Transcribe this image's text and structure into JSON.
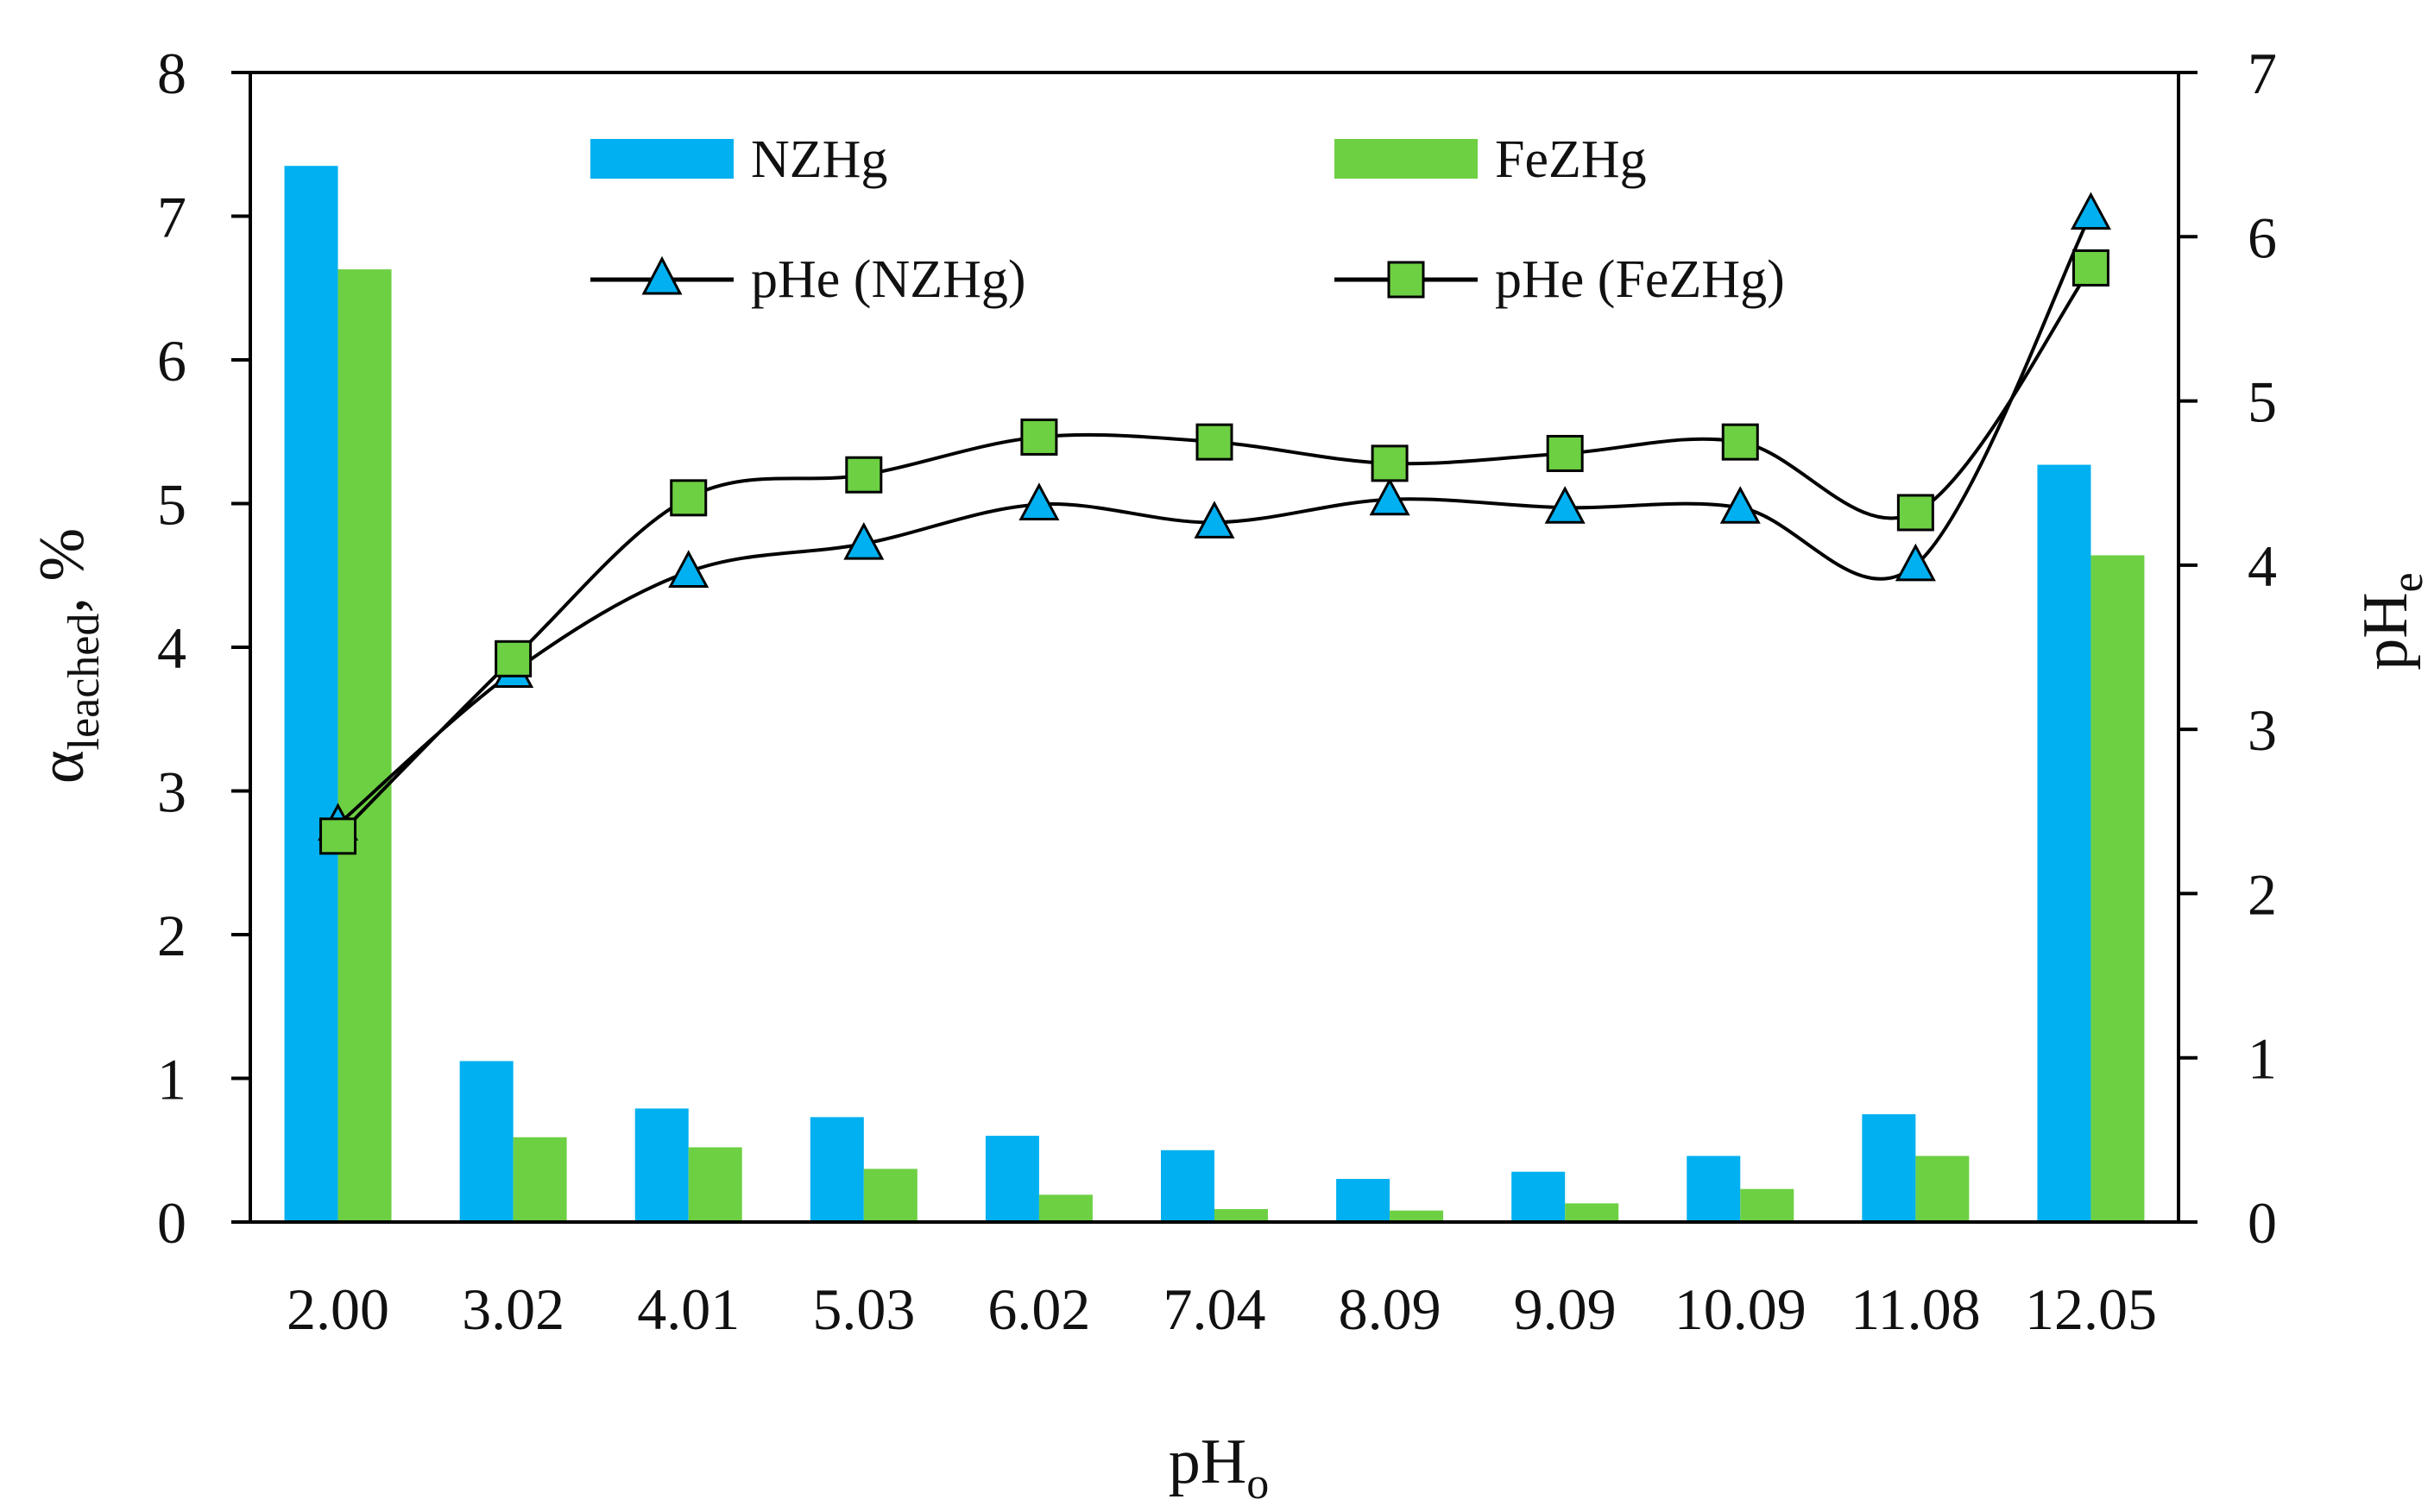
{
  "chart_data": {
    "type": "bar+line",
    "categories": [
      "2.00",
      "3.02",
      "4.01",
      "5.03",
      "6.02",
      "7.04",
      "8.09",
      "9.09",
      "10.09",
      "11.08",
      "12.05"
    ],
    "bar_series": [
      {
        "name": "NZHg",
        "color": "#00b0f0",
        "values": [
          7.35,
          1.12,
          0.79,
          0.73,
          0.6,
          0.5,
          0.3,
          0.35,
          0.46,
          0.75,
          5.27
        ]
      },
      {
        "name": "FeZHg",
        "color": "#6dd043",
        "values": [
          6.63,
          0.59,
          0.52,
          0.37,
          0.19,
          0.09,
          0.08,
          0.13,
          0.23,
          0.46,
          4.64
        ]
      }
    ],
    "line_series": [
      {
        "name": "pHe (NZHg)",
        "marker": "triangle",
        "color": "#00b0f0",
        "values": [
          2.42,
          3.35,
          3.96,
          4.13,
          4.37,
          4.26,
          4.4,
          4.35,
          4.35,
          4.0,
          6.14
        ]
      },
      {
        "name": "pHe (FeZHg)",
        "marker": "square",
        "color": "#6dd043",
        "values": [
          2.35,
          3.43,
          4.41,
          4.55,
          4.78,
          4.75,
          4.62,
          4.68,
          4.75,
          4.32,
          5.81
        ]
      }
    ],
    "left_axis": {
      "min": 0,
      "max": 8,
      "ticks": [
        "0",
        "1",
        "2",
        "3",
        "4",
        "5",
        "6",
        "7",
        "8"
      ]
    },
    "right_axis": {
      "min": 0,
      "max": 7,
      "ticks": [
        "0",
        "1",
        "2",
        "3",
        "4",
        "5",
        "6",
        "7"
      ]
    },
    "xlabel": {
      "base": "pH",
      "sub": "o"
    },
    "ylabel_left": {
      "base": "α",
      "sub": "leached",
      "suffix": ", %"
    },
    "ylabel_right": {
      "base": "pH",
      "sub": "e"
    }
  }
}
